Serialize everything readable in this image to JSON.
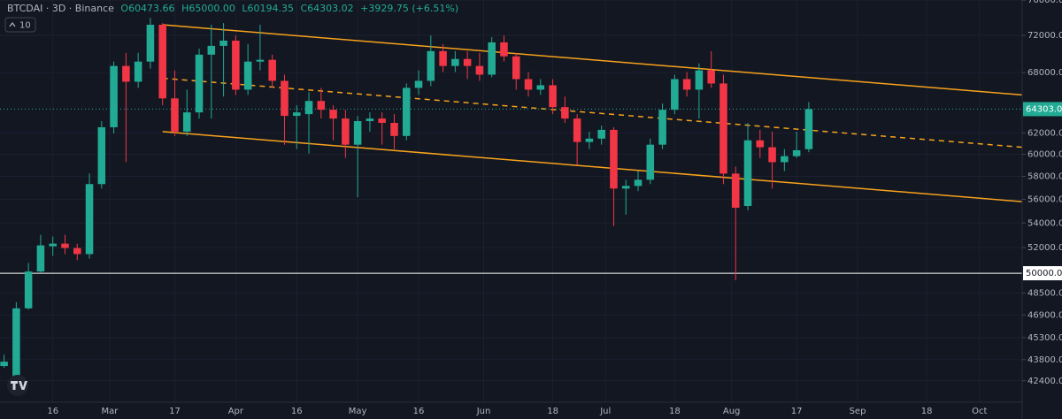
{
  "chart_data": {
    "type": "candlestick",
    "header": {
      "symbol": "BTCDAI · 3D · Binance",
      "ohlc": [
        "O60473.66",
        "H65000.00",
        "L60194.35",
        "C64303.02",
        "+3929.75 (+6.51%)"
      ],
      "indicator": "10"
    },
    "log_scale": true,
    "grid": true,
    "up_color": "#22ab94",
    "down_color": "#f23645",
    "x": [
      3,
      6,
      9,
      12,
      15,
      18,
      21,
      24,
      27,
      30,
      33,
      36,
      39,
      42,
      45,
      48,
      51,
      54,
      57,
      60,
      63,
      66,
      69,
      72,
      75,
      78,
      81,
      84,
      87,
      90,
      93,
      96,
      99,
      102,
      105,
      108,
      111,
      114,
      117,
      120,
      123,
      126,
      129,
      132,
      135,
      138,
      141,
      144,
      147,
      150,
      153,
      156,
      159,
      162,
      165,
      168,
      171,
      174,
      177,
      180,
      183,
      186,
      189,
      192,
      195,
      198,
      201
    ],
    "open": [
      43370,
      41820,
      47380,
      50130,
      52110,
      52320,
      51970,
      51490,
      57320,
      62540,
      68700,
      67060,
      69160,
      73180,
      65370,
      62120,
      63980,
      69900,
      70850,
      71420,
      66250,
      69160,
      69350,
      67150,
      63640,
      63810,
      65110,
      64240,
      63380,
      60890,
      63130,
      63380,
      62960,
      61710,
      66430,
      67150,
      70280,
      68700,
      69440,
      68700,
      67790,
      71230,
      69720,
      67330,
      66250,
      66700,
      64500,
      63380,
      61140,
      61460,
      62290,
      56930,
      57160,
      57700,
      60890,
      64240,
      67330,
      66250,
      68240,
      66880,
      58250,
      55430,
      61300,
      60650,
      59280,
      59830,
      60473.66
    ],
    "high": [
      44130,
      47830,
      50800,
      53030,
      52890,
      53030,
      52320,
      58250,
      63130,
      69160,
      70090,
      70090,
      73960,
      73370,
      68240,
      66250,
      70560,
      73180,
      73370,
      72000,
      71040,
      73180,
      69900,
      67790,
      64680,
      65990,
      66430,
      64680,
      64240,
      63640,
      63980,
      63980,
      63810,
      66880,
      68240,
      72000,
      71040,
      70280,
      70280,
      70090,
      71810,
      72000,
      70090,
      68060,
      67330,
      67330,
      65550,
      63810,
      62120,
      62700,
      62540,
      57700,
      58480,
      61460,
      64850,
      67790,
      68060,
      68970,
      70280,
      67790,
      58880,
      62960,
      62290,
      62120,
      60480,
      62120,
      65000
    ],
    "low": [
      43250,
      41650,
      47300,
      50000,
      51350,
      51490,
      51010,
      51140,
      56930,
      61950,
      59280,
      66430,
      68420,
      64680,
      61710,
      61710,
      63380,
      63380,
      65550,
      65720,
      65720,
      68240,
      66430,
      60890,
      60480,
      60080,
      63380,
      61300,
      59670,
      56180,
      62120,
      60890,
      60480,
      61300,
      65720,
      66610,
      68060,
      68060,
      67330,
      67150,
      67510,
      69160,
      66250,
      65550,
      65720,
      63810,
      62960,
      59040,
      60480,
      60890,
      53750,
      54700,
      56710,
      57320,
      60480,
      63810,
      65550,
      63380,
      66430,
      57320,
      49460,
      55060,
      59670,
      56930,
      58480,
      59670,
      60194.35
    ],
    "close": [
      43660,
      47380,
      50130,
      52180,
      52320,
      51970,
      51490,
      57320,
      62540,
      68700,
      67060,
      69160,
      73180,
      65370,
      62120,
      63980,
      69900,
      70850,
      71420,
      66250,
      69160,
      69350,
      67150,
      63640,
      63980,
      65110,
      64240,
      63380,
      60890,
      63130,
      63380,
      62960,
      61710,
      66430,
      67150,
      70280,
      68700,
      69440,
      68700,
      67790,
      71230,
      69720,
      67330,
      66250,
      66700,
      64500,
      63380,
      61140,
      61460,
      62290,
      56930,
      57160,
      57700,
      60890,
      64240,
      67330,
      66250,
      68240,
      66880,
      58250,
      55280,
      61300,
      60650,
      59280,
      59830,
      60373.27,
      64303.02
    ],
    "xlim": [
      2,
      253.5
    ],
    "ylim": [
      41030,
      76010
    ],
    "xticks": [
      {
        "value": 15,
        "label": "16"
      },
      {
        "value": 29,
        "label": "Mar"
      },
      {
        "value": 45,
        "label": "17"
      },
      {
        "value": 60,
        "label": "Apr"
      },
      {
        "value": 75,
        "label": "16"
      },
      {
        "value": 90,
        "label": "May"
      },
      {
        "value": 105,
        "label": "16"
      },
      {
        "value": 121,
        "label": "Jun"
      },
      {
        "value": 138,
        "label": "18"
      },
      {
        "value": 151,
        "label": "Jul"
      },
      {
        "value": 168,
        "label": "18"
      },
      {
        "value": 182,
        "label": "Aug"
      },
      {
        "value": 198,
        "label": "17"
      },
      {
        "value": 213,
        "label": "Sep"
      },
      {
        "value": 230,
        "label": "18"
      },
      {
        "value": 243,
        "label": "Oct"
      }
    ],
    "yticks": [
      {
        "value": 76000,
        "label": "76000.00"
      },
      {
        "value": 72000,
        "label": "72000.00"
      },
      {
        "value": 68000,
        "label": "68000.00"
      },
      {
        "value": 62000,
        "label": "62000.00"
      },
      {
        "value": 60000,
        "label": "60000.00"
      },
      {
        "value": 58000,
        "label": "58000.00"
      },
      {
        "value": 56000,
        "label": "56000.00"
      },
      {
        "value": 54000,
        "label": "54000.00"
      },
      {
        "value": 52000,
        "label": "52000.00"
      },
      {
        "value": 48500,
        "label": "48500.00"
      },
      {
        "value": 46900,
        "label": "46900.00"
      },
      {
        "value": 45300,
        "label": "45300.00"
      },
      {
        "value": 43800,
        "label": "43800.00"
      },
      {
        "value": 42400,
        "label": "42400.00"
      }
    ],
    "hlines": [
      {
        "value": 50000,
        "label": "50000.00",
        "color": "#ffffff"
      }
    ],
    "trendlines": [
      {
        "x": [
          42,
          253.5
        ],
        "y": [
          73180,
          65720
        ],
        "color": "#f7a21b",
        "dashed": false
      },
      {
        "x": [
          42,
          253.5
        ],
        "y": [
          67420,
          60650
        ],
        "color": "#f7a21b",
        "dashed": true
      },
      {
        "x": [
          42,
          253.5
        ],
        "y": [
          62120,
          55800
        ],
        "color": "#f7a21b",
        "dashed": false
      }
    ]
  }
}
